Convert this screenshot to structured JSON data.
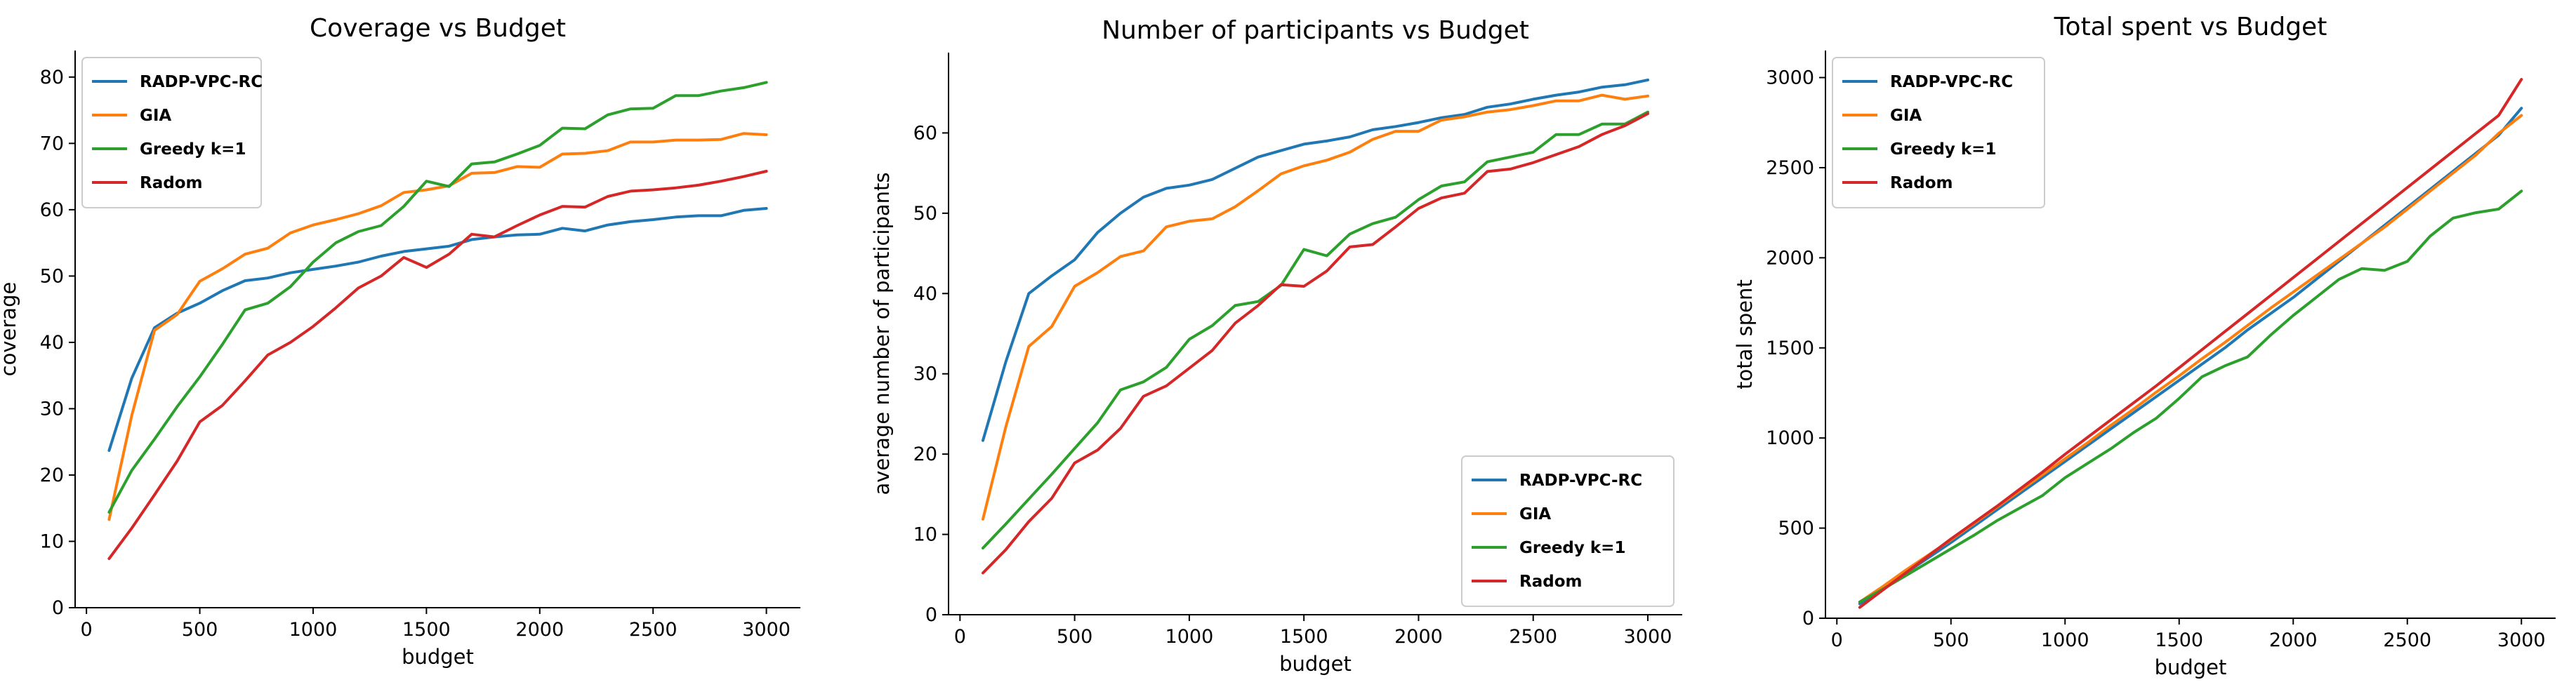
{
  "chart_data": [
    {
      "type": "line",
      "title": "Coverage vs Budget",
      "xlabel": "budget",
      "ylabel": "coverage",
      "xlim": [
        -50,
        3150
      ],
      "ylim": [
        0,
        84
      ],
      "xticks": [
        0,
        500,
        1000,
        1500,
        2000,
        2500,
        3000
      ],
      "yticks": [
        0,
        10,
        20,
        30,
        40,
        50,
        60,
        70,
        80
      ],
      "legend_position": "upper left",
      "x": [
        100,
        200,
        300,
        400,
        500,
        600,
        700,
        800,
        900,
        1000,
        1100,
        1200,
        1300,
        1400,
        1500,
        1600,
        1700,
        1800,
        1900,
        2000,
        2100,
        2200,
        2300,
        2400,
        2500,
        2600,
        2700,
        2800,
        2900,
        3000
      ],
      "series": [
        {
          "name": "RADP-VPC-RC",
          "color": "#1f77b4",
          "values": [
            23.7,
            34.6,
            42.2,
            44.4,
            45.9,
            47.8,
            49.3,
            49.7,
            50.5,
            51.0,
            51.5,
            52.1,
            53.0,
            53.7,
            54.1,
            54.5,
            55.5,
            55.9,
            56.2,
            56.3,
            57.2,
            56.8,
            57.7,
            58.2,
            58.5,
            58.9,
            59.1,
            59.1,
            59.9,
            60.2
          ]
        },
        {
          "name": "GIA",
          "color": "#ff7f0e",
          "values": [
            13.3,
            29.0,
            41.8,
            44.2,
            49.2,
            51.1,
            53.3,
            54.2,
            56.5,
            57.7,
            58.5,
            59.4,
            60.6,
            62.6,
            63.0,
            63.6,
            65.5,
            65.6,
            66.5,
            66.4,
            68.4,
            68.5,
            68.9,
            70.2,
            70.2,
            70.5,
            70.5,
            70.6,
            71.5,
            71.3
          ]
        },
        {
          "name": "Greedy k=1",
          "color": "#2ca02c",
          "values": [
            14.4,
            20.7,
            25.4,
            30.3,
            34.8,
            39.7,
            44.9,
            45.9,
            48.4,
            52.1,
            55.0,
            56.7,
            57.6,
            60.5,
            64.3,
            63.5,
            66.9,
            67.2,
            68.4,
            69.7,
            72.3,
            72.2,
            74.3,
            75.2,
            75.3,
            77.2,
            77.2,
            77.9,
            78.4,
            79.2
          ]
        },
        {
          "name": "Radom",
          "color": "#d62728",
          "values": [
            7.4,
            12.0,
            17.0,
            22.1,
            28.0,
            30.5,
            34.2,
            38.1,
            40.0,
            42.4,
            45.2,
            48.2,
            50.0,
            52.8,
            51.3,
            53.3,
            56.3,
            55.9,
            57.6,
            59.2,
            60.5,
            60.4,
            62.0,
            62.8,
            63.0,
            63.3,
            63.7,
            64.3,
            65.0,
            65.8
          ]
        }
      ]
    },
    {
      "type": "line",
      "title": "Number of participants vs Budget",
      "xlabel": "budget",
      "ylabel": "average number of participants",
      "xlim": [
        -50,
        3150
      ],
      "ylim": [
        0,
        70
      ],
      "xticks": [
        0,
        500,
        1000,
        1500,
        2000,
        2500,
        3000
      ],
      "yticks": [
        0,
        10,
        20,
        30,
        40,
        50,
        60
      ],
      "legend_position": "lower right",
      "x": [
        100,
        200,
        300,
        400,
        500,
        600,
        700,
        800,
        900,
        1000,
        1100,
        1200,
        1300,
        1400,
        1500,
        1600,
        1700,
        1800,
        1900,
        2000,
        2100,
        2200,
        2300,
        2400,
        2500,
        2600,
        2700,
        2800,
        2900,
        3000
      ],
      "series": [
        {
          "name": "RADP-VPC-RC",
          "color": "#1f77b4",
          "values": [
            21.7,
            31.5,
            40.0,
            42.2,
            44.2,
            47.6,
            50.0,
            52.0,
            53.1,
            53.5,
            54.2,
            55.6,
            57.0,
            57.8,
            58.6,
            59.0,
            59.5,
            60.4,
            60.8,
            61.3,
            61.9,
            62.3,
            63.2,
            63.6,
            64.2,
            64.7,
            65.1,
            65.7,
            66.0,
            66.6
          ]
        },
        {
          "name": "GIA",
          "color": "#ff7f0e",
          "values": [
            11.9,
            23.4,
            33.4,
            35.9,
            40.9,
            42.6,
            44.6,
            45.3,
            48.3,
            49.0,
            49.3,
            50.8,
            52.8,
            54.9,
            55.9,
            56.6,
            57.6,
            59.2,
            60.2,
            60.2,
            61.6,
            62.0,
            62.6,
            62.9,
            63.4,
            64.0,
            64.0,
            64.7,
            64.2,
            64.6
          ]
        },
        {
          "name": "Greedy k=1",
          "color": "#2ca02c",
          "values": [
            8.3,
            11.3,
            14.4,
            17.5,
            20.7,
            23.9,
            28.0,
            29.0,
            30.8,
            34.3,
            36.0,
            38.5,
            39.0,
            41.0,
            45.5,
            44.7,
            47.4,
            48.7,
            49.5,
            51.7,
            53.4,
            53.9,
            56.4,
            57.0,
            57.6,
            59.8,
            59.8,
            61.1,
            61.1,
            62.6
          ]
        },
        {
          "name": "Radom",
          "color": "#d62728",
          "values": [
            5.2,
            8.1,
            11.6,
            14.5,
            18.9,
            20.5,
            23.2,
            27.2,
            28.5,
            30.7,
            32.9,
            36.3,
            38.5,
            41.1,
            40.9,
            42.8,
            45.8,
            46.1,
            48.3,
            50.6,
            51.9,
            52.5,
            55.2,
            55.5,
            56.3,
            57.3,
            58.3,
            59.8,
            60.9,
            62.4
          ]
        }
      ]
    },
    {
      "type": "line",
      "title": "Total spent vs Budget",
      "xlabel": "budget",
      "ylabel": "total spent",
      "xlim": [
        -50,
        3150
      ],
      "ylim": [
        0,
        3150
      ],
      "xticks": [
        0,
        500,
        1000,
        1500,
        2000,
        2500,
        3000
      ],
      "yticks": [
        0,
        500,
        1000,
        1500,
        2000,
        2500,
        3000
      ],
      "legend_position": "upper left",
      "x": [
        100,
        200,
        300,
        400,
        500,
        600,
        700,
        800,
        900,
        1000,
        1100,
        1200,
        1300,
        1400,
        1500,
        1600,
        1700,
        1800,
        1900,
        2000,
        2100,
        2200,
        2300,
        2400,
        2500,
        2600,
        2700,
        2800,
        2900,
        3000
      ],
      "series": [
        {
          "name": "RADP-VPC-RC",
          "color": "#1f77b4",
          "values": [
            80,
            165,
            250,
            335,
            420,
            510,
            600,
            690,
            780,
            870,
            960,
            1050,
            1140,
            1230,
            1320,
            1410,
            1500,
            1600,
            1690,
            1780,
            1880,
            1980,
            2080,
            2180,
            2280,
            2380,
            2480,
            2580,
            2680,
            2830
          ]
        },
        {
          "name": "GIA",
          "color": "#ff7f0e",
          "values": [
            90,
            175,
            265,
            350,
            435,
            525,
            615,
            705,
            795,
            885,
            975,
            1070,
            1160,
            1255,
            1345,
            1440,
            1530,
            1625,
            1720,
            1810,
            1900,
            1990,
            2080,
            2170,
            2270,
            2370,
            2470,
            2570,
            2690,
            2790
          ]
        },
        {
          "name": "Greedy k=1",
          "color": "#2ca02c",
          "values": [
            90,
            160,
            235,
            310,
            385,
            460,
            540,
            610,
            680,
            780,
            860,
            940,
            1030,
            1110,
            1220,
            1340,
            1400,
            1450,
            1570,
            1680,
            1780,
            1880,
            1940,
            1930,
            1980,
            2120,
            2220,
            2250,
            2270,
            2370
          ]
        },
        {
          "name": "Radom",
          "color": "#d62728",
          "values": [
            60,
            155,
            250,
            345,
            440,
            530,
            620,
            715,
            810,
            910,
            1005,
            1100,
            1195,
            1290,
            1390,
            1490,
            1590,
            1690,
            1790,
            1890,
            1990,
            2090,
            2190,
            2290,
            2390,
            2490,
            2590,
            2690,
            2790,
            2990
          ]
        }
      ]
    }
  ]
}
